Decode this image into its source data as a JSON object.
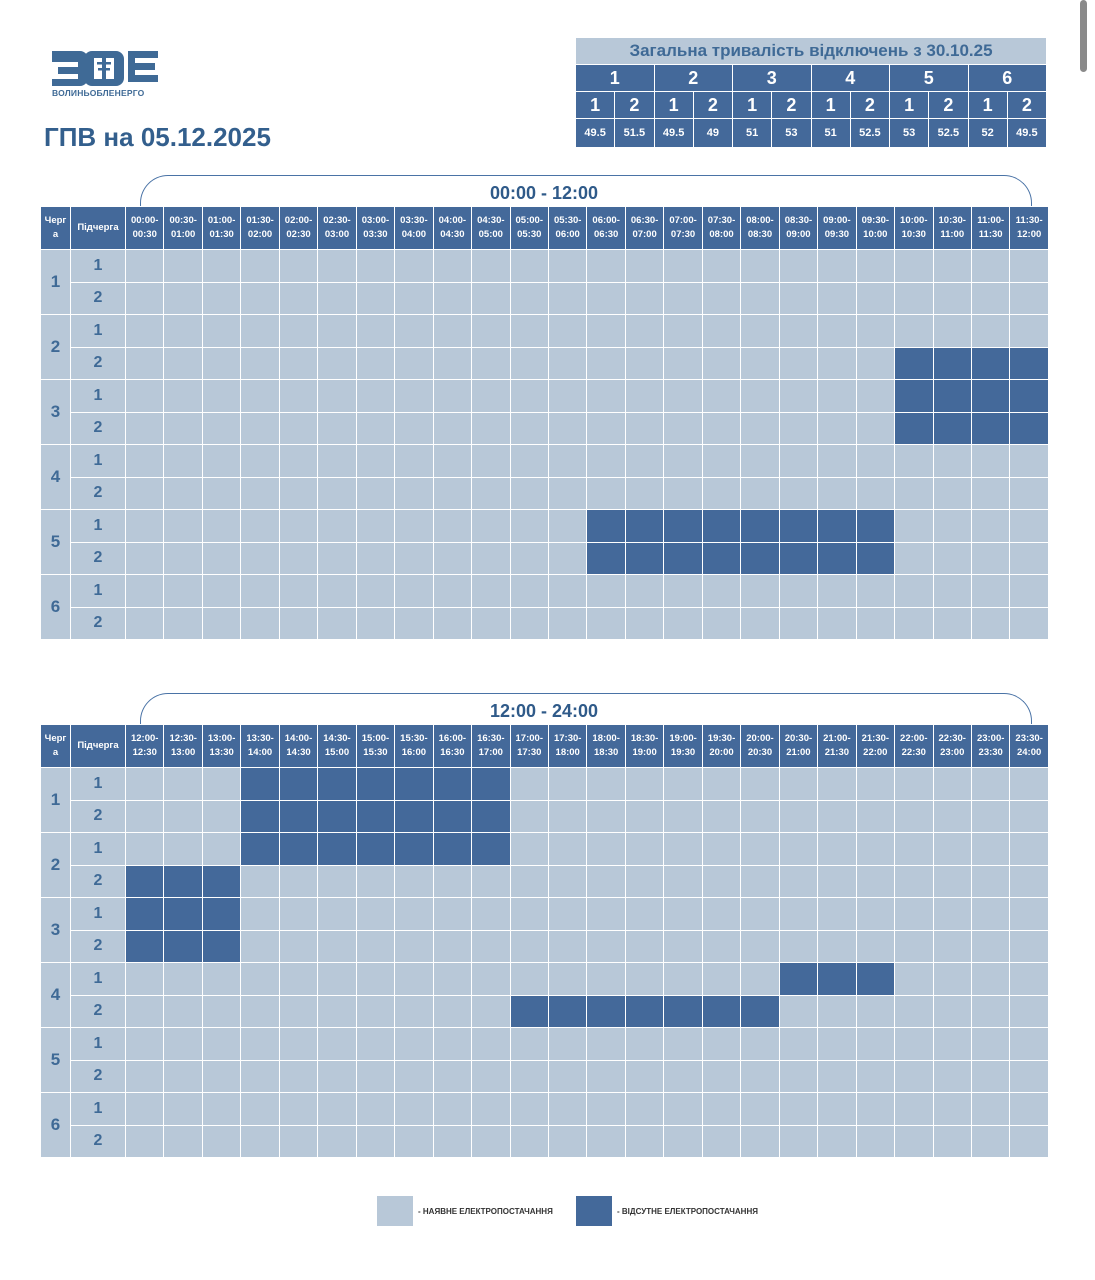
{
  "header": {
    "logo_text": "ЗОЕ",
    "logo_subtitle": "ВОЛИНЬОБЛЕНЕРГО",
    "title": "ГПВ на 05.12.2025"
  },
  "summary": {
    "title": "Загальна тривалість відключень з 30.10.25",
    "groups": [
      "1",
      "2",
      "3",
      "4",
      "5",
      "6"
    ],
    "subgroups": [
      "1",
      "2",
      "1",
      "2",
      "1",
      "2",
      "1",
      "2",
      "1",
      "2",
      "1",
      "2"
    ],
    "values": [
      "49.5",
      "51.5",
      "49.5",
      "49",
      "51",
      "53",
      "51",
      "52.5",
      "53",
      "52.5",
      "52",
      "49.5"
    ]
  },
  "schedule": {
    "queue_header": "Черг а",
    "subqueue_header": "Підчерга",
    "sections": [
      {
        "range": "00:00 - 12:00",
        "slots": [
          "00:00-00:30",
          "00:30-01:00",
          "01:00-01:30",
          "01:30-02:00",
          "02:00-02:30",
          "02:30-03:00",
          "03:00-03:30",
          "03:30-04:00",
          "04:00-04:30",
          "04:30-05:00",
          "05:00-05:30",
          "05:30-06:00",
          "06:00-06:30",
          "06:30-07:00",
          "07:00-07:30",
          "07:30-08:00",
          "08:00-08:30",
          "08:30-09:00",
          "09:00-09:30",
          "09:30-10:00",
          "10:00-10:30",
          "10:30-11:00",
          "11:00-11:30",
          "11:30-12:00"
        ],
        "rows": [
          {
            "queue": "1",
            "sub": "1",
            "off": []
          },
          {
            "queue": "1",
            "sub": "2",
            "off": []
          },
          {
            "queue": "2",
            "sub": "1",
            "off": []
          },
          {
            "queue": "2",
            "sub": "2",
            "off": [
              20,
              21,
              22,
              23
            ]
          },
          {
            "queue": "3",
            "sub": "1",
            "off": [
              20,
              21,
              22,
              23
            ]
          },
          {
            "queue": "3",
            "sub": "2",
            "off": [
              20,
              21,
              22,
              23
            ]
          },
          {
            "queue": "4",
            "sub": "1",
            "off": []
          },
          {
            "queue": "4",
            "sub": "2",
            "off": []
          },
          {
            "queue": "5",
            "sub": "1",
            "off": [
              12,
              13,
              14,
              15,
              16,
              17,
              18,
              19
            ]
          },
          {
            "queue": "5",
            "sub": "2",
            "off": [
              12,
              13,
              14,
              15,
              16,
              17,
              18,
              19
            ]
          },
          {
            "queue": "6",
            "sub": "1",
            "off": []
          },
          {
            "queue": "6",
            "sub": "2",
            "off": []
          }
        ]
      },
      {
        "range": "12:00 - 24:00",
        "slots": [
          "12:00-12:30",
          "12:30-13:00",
          "13:00-13:30",
          "13:30-14:00",
          "14:00-14:30",
          "14:30-15:00",
          "15:00-15:30",
          "15:30-16:00",
          "16:00-16:30",
          "16:30-17:00",
          "17:00-17:30",
          "17:30-18:00",
          "18:00-18:30",
          "18:30-19:00",
          "19:00-19:30",
          "19:30-20:00",
          "20:00-20:30",
          "20:30-21:00",
          "21:00-21:30",
          "21:30-22:00",
          "22:00-22:30",
          "22:30-23:00",
          "23:00-23:30",
          "23:30-24:00"
        ],
        "rows": [
          {
            "queue": "1",
            "sub": "1",
            "off": [
              3,
              4,
              5,
              6,
              7,
              8,
              9
            ]
          },
          {
            "queue": "1",
            "sub": "2",
            "off": [
              3,
              4,
              5,
              6,
              7,
              8,
              9
            ]
          },
          {
            "queue": "2",
            "sub": "1",
            "off": [
              3,
              4,
              5,
              6,
              7,
              8,
              9
            ]
          },
          {
            "queue": "2",
            "sub": "2",
            "off": [
              0,
              1,
              2
            ]
          },
          {
            "queue": "3",
            "sub": "1",
            "off": [
              0,
              1,
              2
            ]
          },
          {
            "queue": "3",
            "sub": "2",
            "off": [
              0,
              1,
              2
            ]
          },
          {
            "queue": "4",
            "sub": "1",
            "off": [
              17,
              18,
              19
            ]
          },
          {
            "queue": "4",
            "sub": "2",
            "off": [
              10,
              11,
              12,
              13,
              14,
              15,
              16
            ]
          },
          {
            "queue": "5",
            "sub": "1",
            "off": []
          },
          {
            "queue": "5",
            "sub": "2",
            "off": []
          },
          {
            "queue": "6",
            "sub": "1",
            "off": []
          },
          {
            "queue": "6",
            "sub": "2",
            "off": []
          }
        ]
      }
    ]
  },
  "legend": {
    "on_label": "- НАЯВНЕ ЕЛЕКТРОПОСТАЧАННЯ",
    "off_label": "- ВІДСУТНЕ ЕЛЕКТРОПОСТАЧАННЯ"
  },
  "colors": {
    "on": "#b8c8d8",
    "off": "#44699a",
    "title": "#335f8d"
  }
}
